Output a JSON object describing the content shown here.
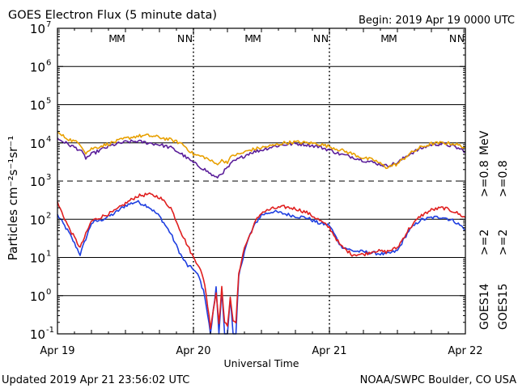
{
  "header": {
    "title": "GOES Electron Flux (5 minute data)",
    "begin": "Begin: 2019 Apr 19 0000 UTC"
  },
  "footer": {
    "updated": "Updated 2019 Apr 21 23:56:02 UTC",
    "credit": "NOAA/SWPC Boulder, CO USA"
  },
  "chart_data": {
    "type": "line",
    "title": "GOES Electron Flux (5 minute data)",
    "xlabel": "Universal Time",
    "ylabel": "Particles cm⁻²s⁻¹sr⁻¹",
    "yscale": "log",
    "ylim": [
      0.1,
      10000000
    ],
    "xlim": [
      0,
      72
    ],
    "x_unit": "hours since 2019 Apr 19 0000 UTC",
    "x_ticks": [
      {
        "x": 0,
        "label": "Apr 19"
      },
      {
        "x": 24,
        "label": "Apr 20"
      },
      {
        "x": 48,
        "label": "Apr 21"
      },
      {
        "x": 72,
        "label": "Apr 22"
      }
    ],
    "y_ticks": [
      {
        "value": 0.1,
        "base": "10",
        "exp": "-1"
      },
      {
        "value": 1,
        "base": "10",
        "exp": "0"
      },
      {
        "value": 10,
        "base": "10",
        "exp": "1"
      },
      {
        "value": 100,
        "base": "10",
        "exp": "2"
      },
      {
        "value": 1000,
        "base": "10",
        "exp": "3"
      },
      {
        "value": 10000,
        "base": "10",
        "exp": "4"
      },
      {
        "value": 100000,
        "base": "10",
        "exp": "5"
      },
      {
        "value": 1000000,
        "base": "10",
        "exp": "6"
      },
      {
        "value": 10000000,
        "base": "10",
        "exp": "7"
      }
    ],
    "grid": true,
    "dashed_line_value": 1000,
    "markers": [
      {
        "x": 9.8,
        "label": "M",
        "color": "#1f3fe0"
      },
      {
        "x": 11.2,
        "label": "M",
        "color": "#e01f1f"
      },
      {
        "x": 21.8,
        "label": "N",
        "color": "#1f3fe0"
      },
      {
        "x": 23.2,
        "label": "N",
        "color": "#e01f1f"
      },
      {
        "x": 33.8,
        "label": "M",
        "color": "#1f3fe0"
      },
      {
        "x": 35.2,
        "label": "M",
        "color": "#e01f1f"
      },
      {
        "x": 45.8,
        "label": "N",
        "color": "#1f3fe0"
      },
      {
        "x": 47.2,
        "label": "N",
        "color": "#e01f1f"
      },
      {
        "x": 57.8,
        "label": "M",
        "color": "#1f3fe0"
      },
      {
        "x": 59.2,
        "label": "M",
        "color": "#e01f1f"
      },
      {
        "x": 69.8,
        "label": "N",
        "color": "#1f3fe0"
      },
      {
        "x": 71.2,
        "label": "N",
        "color": "#e01f1f"
      }
    ],
    "legend": {
      "placement": "right",
      "satellites": [
        {
          "label": "GOES14",
          "color": "#000000"
        },
        {
          "label": "GOES15",
          "color": "#000000"
        }
      ],
      "energies": [
        {
          "label": ">=2",
          "color": "#1f3fe0"
        },
        {
          "label": ">=2",
          "color": "#e01f1f"
        },
        {
          "label": ">=0.8",
          "color": "#5b1f9a"
        },
        {
          "label": ">=0.8",
          "color": "#e8a000"
        }
      ],
      "unit": "MeV"
    },
    "series": [
      {
        "name": "GOES14 >=2 MeV",
        "color": "#1f3fe0",
        "x": [
          0,
          2,
          4,
          6,
          8,
          10,
          12,
          14,
          16,
          18,
          20,
          21,
          22,
          23,
          24,
          25,
          26,
          27,
          28,
          28.5,
          29,
          29.5,
          30,
          30.5,
          31,
          31.5,
          32,
          33,
          34,
          35,
          36,
          38,
          40,
          42,
          44,
          46,
          48,
          50,
          52,
          54,
          56,
          58,
          60,
          62,
          64,
          66,
          68,
          70,
          72
        ],
        "y": [
          130,
          45,
          12,
          80,
          100,
          140,
          230,
          290,
          220,
          120,
          42,
          20,
          10,
          6,
          5,
          3,
          1,
          0.1,
          1.6,
          0.1,
          1.5,
          0.1,
          0.1,
          0.8,
          0.1,
          0.1,
          3.2,
          15,
          40,
          80,
          130,
          160,
          140,
          120,
          110,
          80,
          70,
          20,
          15,
          14,
          13,
          12,
          15,
          50,
          95,
          110,
          115,
          90,
          55
        ]
      },
      {
        "name": "GOES15 >=2 MeV",
        "color": "#e01f1f",
        "x": [
          0,
          2,
          4,
          6,
          8,
          10,
          12,
          14,
          16,
          18,
          20,
          21,
          22,
          23,
          24,
          25,
          26,
          27,
          28,
          28.5,
          29,
          29.5,
          30,
          30.5,
          31,
          31.5,
          32,
          33,
          34,
          35,
          36,
          38,
          40,
          42,
          44,
          46,
          48,
          50,
          52,
          54,
          56,
          58,
          60,
          62,
          64,
          66,
          68,
          70,
          72
        ],
        "y": [
          270,
          60,
          18,
          90,
          120,
          160,
          260,
          400,
          450,
          380,
          200,
          90,
          40,
          20,
          10,
          6,
          2,
          0.15,
          1.2,
          0.2,
          1.6,
          0.2,
          0.15,
          1.0,
          0.2,
          0.2,
          4,
          18,
          40,
          90,
          150,
          190,
          210,
          190,
          150,
          100,
          60,
          20,
          12,
          12,
          15,
          14,
          18,
          55,
          120,
          175,
          200,
          160,
          110
        ]
      },
      {
        "name": "GOES14 >=0.8 MeV",
        "color": "#5b1f9a",
        "x": [
          0,
          2,
          4,
          5,
          6,
          8,
          10,
          12,
          14,
          16,
          18,
          20,
          22,
          24,
          26,
          28,
          29,
          30,
          31,
          32,
          34,
          36,
          38,
          40,
          42,
          44,
          46,
          48,
          50,
          52,
          54,
          56,
          58,
          60,
          62,
          64,
          66,
          68,
          70,
          72
        ],
        "y": [
          13000,
          9000,
          6500,
          4000,
          5000,
          7000,
          9000,
          10500,
          11000,
          10000,
          9000,
          7500,
          5000,
          3000,
          2000,
          1200,
          1600,
          2200,
          3200,
          3800,
          5500,
          6500,
          8000,
          9000,
          9500,
          9000,
          8000,
          6500,
          5000,
          4300,
          3500,
          3000,
          2500,
          3000,
          5000,
          7000,
          9000,
          9500,
          8000,
          6000
        ]
      },
      {
        "name": "GOES15 >=0.8 MeV",
        "color": "#e8a000",
        "x": [
          0,
          2,
          4,
          5,
          6,
          8,
          10,
          12,
          14,
          16,
          18,
          20,
          22,
          24,
          26,
          28,
          29,
          30,
          31,
          32,
          34,
          36,
          38,
          40,
          42,
          44,
          46,
          48,
          50,
          52,
          54,
          56,
          58,
          60,
          62,
          64,
          66,
          68,
          70,
          72
        ],
        "y": [
          18000,
          12500,
          9500,
          5500,
          7000,
          8500,
          10500,
          13000,
          15000,
          15500,
          14000,
          12000,
          9500,
          5000,
          4200,
          2800,
          3400,
          3200,
          4800,
          5000,
          6500,
          7500,
          8500,
          10000,
          10500,
          10000,
          9500,
          8000,
          6500,
          5200,
          4000,
          3500,
          2300,
          2800,
          5000,
          7500,
          9500,
          10000,
          9500,
          7500
        ]
      }
    ]
  }
}
